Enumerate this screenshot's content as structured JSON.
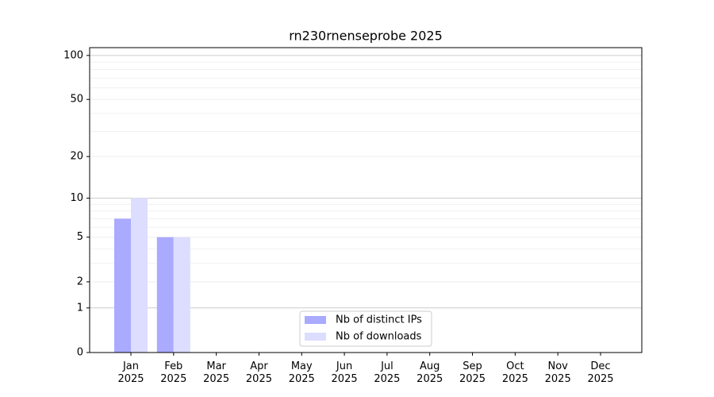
{
  "chart_data": {
    "type": "bar",
    "title": "rn230rnenseprobe 2025",
    "categories": [
      "Jan 2025",
      "Feb 2025",
      "Mar 2025",
      "Apr 2025",
      "May 2025",
      "Jun 2025",
      "Jul 2025",
      "Aug 2025",
      "Sep 2025",
      "Oct 2025",
      "Nov 2025",
      "Dec 2025"
    ],
    "series": [
      {
        "name": "Nb of distinct IPs",
        "color": "#aaaaff",
        "values": [
          7,
          5,
          0,
          0,
          0,
          0,
          0,
          0,
          0,
          0,
          0,
          0
        ]
      },
      {
        "name": "Nb of downloads",
        "color": "#ddddff",
        "values": [
          10,
          5,
          0,
          0,
          0,
          0,
          0,
          0,
          0,
          0,
          0,
          0
        ]
      }
    ],
    "yscale": "log1p",
    "ylim": [
      0,
      113
    ],
    "yticks": [
      0,
      1,
      2,
      5,
      10,
      20,
      50,
      100
    ],
    "minor_yticks": [
      3,
      4,
      6,
      7,
      8,
      9,
      30,
      40,
      60,
      70,
      80,
      90
    ],
    "grid": true,
    "legend": "lower center"
  }
}
